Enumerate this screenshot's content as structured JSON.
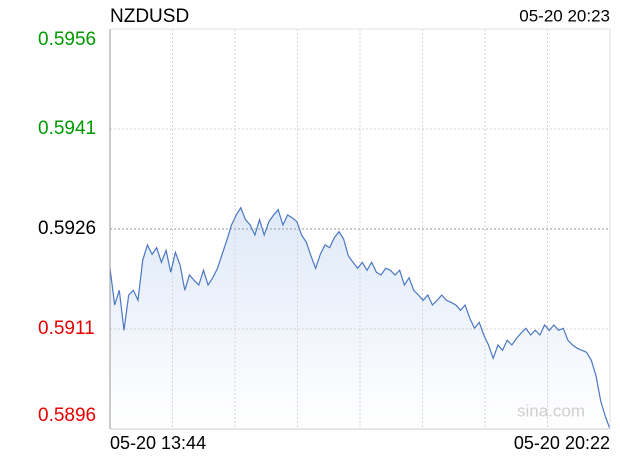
{
  "chart_data": {
    "type": "line",
    "title": "NZDUSD",
    "timestamp": "05-20 20:23",
    "watermark": "sina.com",
    "x_labels": [
      "05-20 13:44",
      "05-20 20:22"
    ],
    "ylim": [
      0.5896,
      0.5956
    ],
    "yticks": [
      0.5896,
      0.5911,
      0.5926,
      0.5941,
      0.5956
    ],
    "ytick_colors": [
      "#e60000",
      "#e60000",
      "#000000",
      "#009900",
      "#009900"
    ],
    "grid": true,
    "x_grid_divisions": 8,
    "color": "#4a78c2",
    "series": [
      {
        "name": "NZDUSD",
        "color": "#4a78c2",
        "values": [
          0.59201,
          0.59146,
          0.59168,
          0.59108,
          0.59161,
          0.59168,
          0.59153,
          0.59213,
          0.59236,
          0.59222,
          0.59232,
          0.5921,
          0.59228,
          0.59195,
          0.59225,
          0.59206,
          0.59168,
          0.59191,
          0.59183,
          0.59176,
          0.59198,
          0.59176,
          0.59187,
          0.59201,
          0.59222,
          0.59243,
          0.59266,
          0.59281,
          0.59292,
          0.59274,
          0.59266,
          0.59251,
          0.59274,
          0.59251,
          0.59271,
          0.59281,
          0.59289,
          0.59266,
          0.59281,
          0.59277,
          0.59271,
          0.59251,
          0.5924,
          0.5922,
          0.59201,
          0.59222,
          0.59236,
          0.59232,
          0.59247,
          0.59256,
          0.59245,
          0.5922,
          0.5921,
          0.59201,
          0.5921,
          0.59198,
          0.5921,
          0.59195,
          0.59191,
          0.59201,
          0.59198,
          0.59191,
          0.59198,
          0.59176,
          0.59187,
          0.59168,
          0.59161,
          0.59153,
          0.59161,
          0.59146,
          0.59153,
          0.59161,
          0.59153,
          0.5915,
          0.59146,
          0.59138,
          0.59146,
          0.59126,
          0.59111,
          0.5912,
          0.59101,
          0.59086,
          0.59066,
          0.59086,
          0.59078,
          0.59093,
          0.59086,
          0.59096,
          0.59104,
          0.59111,
          0.59101,
          0.59108,
          0.59101,
          0.59116,
          0.59108,
          0.59116,
          0.59108,
          0.59111,
          0.59093,
          0.59086,
          0.59081,
          0.59078,
          0.59075,
          0.59063,
          0.5904,
          0.59002,
          0.58979,
          0.5896
        ]
      }
    ]
  }
}
